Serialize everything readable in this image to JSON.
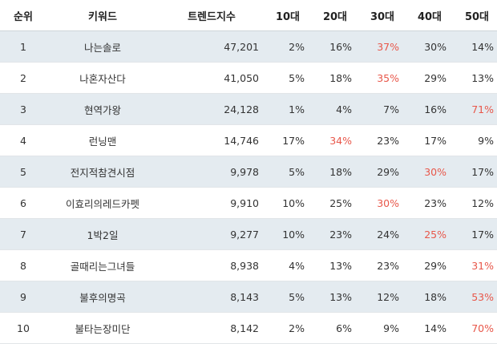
{
  "headers": {
    "rank": "순위",
    "keyword": "키워드",
    "trend": "트렌드지수",
    "age10": "10대",
    "age20": "20대",
    "age30": "30대",
    "age40": "40대",
    "age50": "50대"
  },
  "highlight_color": "#e8574a",
  "stripe_color": "#e4ebf0",
  "rows": [
    {
      "rank": "1",
      "keyword": "나는솔로",
      "trend": "47,201",
      "age": [
        "2%",
        "16%",
        "37%",
        "30%",
        "14%"
      ],
      "highlight": 2
    },
    {
      "rank": "2",
      "keyword": "나혼자산다",
      "trend": "41,050",
      "age": [
        "5%",
        "18%",
        "35%",
        "29%",
        "13%"
      ],
      "highlight": 2
    },
    {
      "rank": "3",
      "keyword": "현역가왕",
      "trend": "24,128",
      "age": [
        "1%",
        "4%",
        "7%",
        "16%",
        "71%"
      ],
      "highlight": 4
    },
    {
      "rank": "4",
      "keyword": "런닝맨",
      "trend": "14,746",
      "age": [
        "17%",
        "34%",
        "23%",
        "17%",
        "9%"
      ],
      "highlight": 1
    },
    {
      "rank": "5",
      "keyword": "전지적참견시점",
      "trend": "9,978",
      "age": [
        "5%",
        "18%",
        "29%",
        "30%",
        "17%"
      ],
      "highlight": 3
    },
    {
      "rank": "6",
      "keyword": "이효리의레드카펫",
      "trend": "9,910",
      "age": [
        "10%",
        "25%",
        "30%",
        "23%",
        "12%"
      ],
      "highlight": 2
    },
    {
      "rank": "7",
      "keyword": "1박2일",
      "trend": "9,277",
      "age": [
        "10%",
        "23%",
        "24%",
        "25%",
        "17%"
      ],
      "highlight": 3
    },
    {
      "rank": "8",
      "keyword": "골때리는그녀들",
      "trend": "8,938",
      "age": [
        "4%",
        "13%",
        "23%",
        "29%",
        "31%"
      ],
      "highlight": 4
    },
    {
      "rank": "9",
      "keyword": "불후의명곡",
      "trend": "8,143",
      "age": [
        "5%",
        "13%",
        "12%",
        "18%",
        "53%"
      ],
      "highlight": 4
    },
    {
      "rank": "10",
      "keyword": "불타는장미단",
      "trend": "8,142",
      "age": [
        "2%",
        "6%",
        "9%",
        "14%",
        "70%"
      ],
      "highlight": 4
    }
  ]
}
